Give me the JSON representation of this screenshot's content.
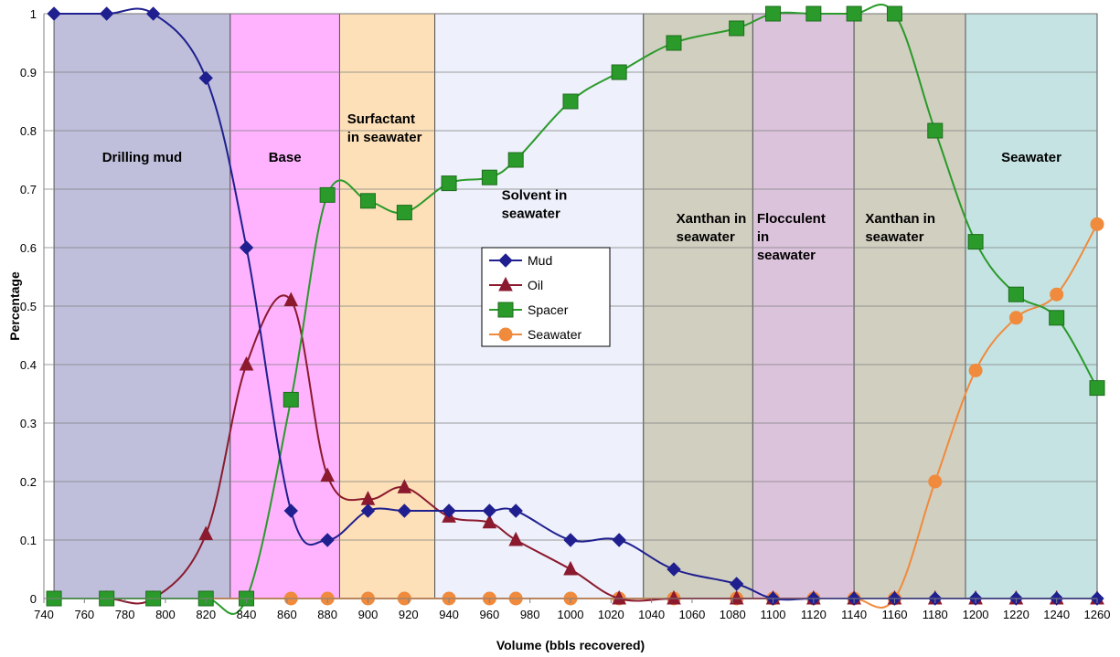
{
  "chart_data": {
    "type": "line",
    "xlabel": "Volume (bbls recovered)",
    "ylabel": "Percentage",
    "xlim": [
      740,
      1260
    ],
    "ylim": [
      0,
      1
    ],
    "x_ticks": [
      740,
      760,
      780,
      800,
      820,
      840,
      860,
      880,
      900,
      920,
      940,
      960,
      980,
      1000,
      1020,
      1040,
      1060,
      1080,
      1100,
      1120,
      1140,
      1160,
      1180,
      1200,
      1220,
      1240,
      1260
    ],
    "y_ticks": [
      0,
      0.1,
      0.2,
      0.3,
      0.4,
      0.5,
      0.6,
      0.7,
      0.8,
      0.9,
      1
    ],
    "y_tick_labels": [
      "0",
      "0.1",
      "0.2",
      "0.3",
      "0.4",
      "0.5",
      "0.6",
      "0.7",
      "0.8",
      "0.9",
      "1"
    ],
    "zones": [
      {
        "label": [
          "Drilling mud"
        ],
        "x0": 745,
        "x1": 832,
        "color": "#bfbfdc"
      },
      {
        "label": [
          "Base"
        ],
        "x0": 832,
        "x1": 886,
        "color": "#ffb3ff"
      },
      {
        "label": [
          "Surfactant",
          "in seawater"
        ],
        "x0": 886,
        "x1": 933,
        "color": "#fde0b8"
      },
      {
        "label": [
          "Solvent in",
          "seawater"
        ],
        "x0": 933,
        "x1": 1036,
        "color": "#eef0fb"
      },
      {
        "label": [
          "Xanthan in",
          "seawater"
        ],
        "x0": 1036,
        "x1": 1090,
        "color": "#d1cfc0"
      },
      {
        "label": [
          "Flocculent",
          "in",
          "seawater"
        ],
        "x0": 1090,
        "x1": 1140,
        "color": "#dcc3dc"
      },
      {
        "label": [
          "Xanthan in",
          "seawater"
        ],
        "x0": 1140,
        "x1": 1195,
        "color": "#d1cfc0"
      },
      {
        "label": [
          "Seawater"
        ],
        "x0": 1195,
        "x1": 1260,
        "color": "#c5e3e3"
      }
    ],
    "series": [
      {
        "name": "Mud",
        "color": "#1f1f8f",
        "marker": "diamond",
        "x": [
          745,
          771,
          794,
          820,
          840,
          862,
          880,
          900,
          918,
          940,
          960,
          973,
          1000,
          1024,
          1051,
          1082,
          1100,
          1120,
          1140,
          1160,
          1180,
          1200,
          1220,
          1240,
          1260
        ],
        "y": [
          1,
          1,
          1,
          0.89,
          0.6,
          0.15,
          0.1,
          0.15,
          0.15,
          0.15,
          0.15,
          0.15,
          0.1,
          0.1,
          0.05,
          0.025,
          0,
          0,
          0,
          0,
          0,
          0,
          0,
          0,
          0
        ]
      },
      {
        "name": "Oil",
        "color": "#8b1a2e",
        "marker": "triangle",
        "x": [
          745,
          771,
          794,
          820,
          840,
          862,
          880,
          900,
          918,
          940,
          960,
          973,
          1000,
          1024,
          1051,
          1082,
          1100,
          1120,
          1140,
          1160,
          1180,
          1200,
          1220,
          1240,
          1260
        ],
        "y": [
          0,
          0,
          0,
          0.11,
          0.4,
          0.51,
          0.21,
          0.17,
          0.19,
          0.14,
          0.13,
          0.1,
          0.05,
          0,
          0,
          0,
          0,
          0,
          0,
          0,
          0,
          0,
          0,
          0,
          0
        ]
      },
      {
        "name": "Spacer",
        "color": "#2a9a2a",
        "marker": "square",
        "x": [
          745,
          771,
          794,
          820,
          840,
          862,
          880,
          900,
          918,
          940,
          960,
          973,
          1000,
          1024,
          1051,
          1082,
          1100,
          1120,
          1140,
          1160,
          1180,
          1200,
          1220,
          1240,
          1260
        ],
        "y": [
          0,
          0,
          0,
          0,
          0,
          0.34,
          0.69,
          0.68,
          0.66,
          0.71,
          0.72,
          0.75,
          0.85,
          0.9,
          0.95,
          0.975,
          1,
          1,
          1,
          1,
          0.8,
          0.61,
          0.52,
          0.48,
          0.36
        ]
      },
      {
        "name": "Seawater",
        "color": "#f08a3c",
        "marker": "circle",
        "x": [
          745,
          771,
          794,
          820,
          840,
          862,
          880,
          900,
          918,
          940,
          960,
          973,
          1000,
          1024,
          1051,
          1082,
          1100,
          1120,
          1140,
          1160,
          1180,
          1200,
          1220,
          1240,
          1260
        ],
        "y": [
          0,
          0,
          0,
          0,
          0,
          0,
          0,
          0,
          0,
          0,
          0,
          0,
          0,
          0,
          0,
          0,
          0,
          0,
          0,
          0,
          0.2,
          0.39,
          0.48,
          0.52,
          0.64
        ]
      }
    ],
    "legend": {
      "placement": "center"
    }
  }
}
